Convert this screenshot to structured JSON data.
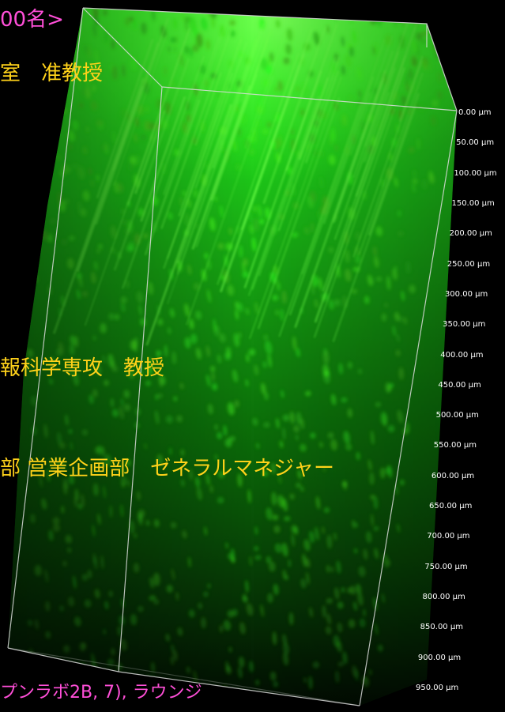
{
  "overlay_text": {
    "line1": "00名>",
    "line2": "室　准教授",
    "line3": "報科学専攻　教授",
    "line4": "部 営業企画部　ゼネラルマネジャー",
    "line5": "プンラボ2B, 7), ラウンジ"
  },
  "depth_scale": {
    "labels": [
      "0.00 µm",
      "50.00 µm",
      "100.00 µm",
      "150.00 µm",
      "200.00 µm",
      "250.00 µm",
      "300.00 µm",
      "350.00 µm",
      "400.00 µm",
      "450.00 µm",
      "500.00 µm",
      "550.00 µm",
      "600.00 µm",
      "650.00 µm",
      "700.00 µm",
      "750.00 µm",
      "800.00 µm",
      "850.00 µm",
      "900.00 µm",
      "950.00 µm"
    ]
  },
  "colors": {
    "background": "#000000",
    "fluorescence": "#22ff22",
    "box_edges": "#ffffff",
    "text_yellow": "#ffd21a",
    "text_magenta": "#ff4fd8"
  }
}
